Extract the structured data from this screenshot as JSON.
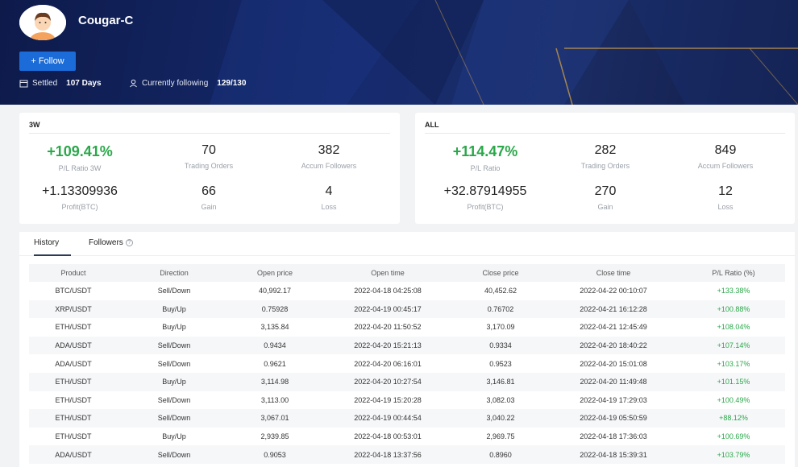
{
  "profile": {
    "username": "Cougar-C",
    "follow_label": "+ Follow",
    "settled_label": "Settled",
    "settled_value": "107 Days",
    "following_label": "Currently following",
    "following_value": "129/130"
  },
  "stats_3w": {
    "title": "3W",
    "pl_ratio": "+109.41%",
    "pl_ratio_label": "P/L Ratio 3W",
    "trading_orders": "70",
    "trading_orders_label": "Trading Orders",
    "accum_followers": "382",
    "accum_followers_label": "Accum Followers",
    "profit": "+1.13309936",
    "profit_label": "Profit(BTC)",
    "gain": "66",
    "gain_label": "Gain",
    "loss": "4",
    "loss_label": "Loss"
  },
  "stats_all": {
    "title": "ALL",
    "pl_ratio": "+114.47%",
    "pl_ratio_label": "P/L Ratio",
    "trading_orders": "282",
    "trading_orders_label": "Trading Orders",
    "accum_followers": "849",
    "accum_followers_label": "Accum Followers",
    "profit": "+32.87914955",
    "profit_label": "Profit(BTC)",
    "gain": "270",
    "gain_label": "Gain",
    "loss": "12",
    "loss_label": "Loss"
  },
  "tabs": {
    "history": "History",
    "followers": "Followers"
  },
  "table": {
    "headers": [
      "Product",
      "Direction",
      "Open price",
      "Open time",
      "Close price",
      "Close time",
      "P/L Ratio (%)"
    ],
    "rows": [
      [
        "BTC/USDT",
        "Sell/Down",
        "40,992.17",
        "2022-04-18 04:25:08",
        "40,452.62",
        "2022-04-22 00:10:07",
        "+133.38%"
      ],
      [
        "XRP/USDT",
        "Buy/Up",
        "0.75928",
        "2022-04-19 00:45:17",
        "0.76702",
        "2022-04-21 16:12:28",
        "+100.88%"
      ],
      [
        "ETH/USDT",
        "Buy/Up",
        "3,135.84",
        "2022-04-20 11:50:52",
        "3,170.09",
        "2022-04-21 12:45:49",
        "+108.04%"
      ],
      [
        "ADA/USDT",
        "Sell/Down",
        "0.9434",
        "2022-04-20 15:21:13",
        "0.9334",
        "2022-04-20 18:40:22",
        "+107.14%"
      ],
      [
        "ADA/USDT",
        "Sell/Down",
        "0.9621",
        "2022-04-20 06:16:01",
        "0.9523",
        "2022-04-20 15:01:08",
        "+103.17%"
      ],
      [
        "ETH/USDT",
        "Buy/Up",
        "3,114.98",
        "2022-04-20 10:27:54",
        "3,146.81",
        "2022-04-20 11:49:48",
        "+101.15%"
      ],
      [
        "ETH/USDT",
        "Sell/Down",
        "3,113.00",
        "2022-04-19 15:20:28",
        "3,082.03",
        "2022-04-19 17:29:03",
        "+100.49%"
      ],
      [
        "ETH/USDT",
        "Sell/Down",
        "3,067.01",
        "2022-04-19 00:44:54",
        "3,040.22",
        "2022-04-19 05:50:59",
        "+88.12%"
      ],
      [
        "ETH/USDT",
        "Buy/Up",
        "2,939.85",
        "2022-04-18 00:53:01",
        "2,969.75",
        "2022-04-18 17:36:03",
        "+100.69%"
      ],
      [
        "ADA/USDT",
        "Sell/Down",
        "0.9053",
        "2022-04-18 13:37:56",
        "0.8960",
        "2022-04-18 15:39:31",
        "+103.79%"
      ]
    ]
  },
  "colors": {
    "gain_green": "#2aa84a",
    "button_blue": "#1b6bd8",
    "header_navy": "#162a6e"
  }
}
